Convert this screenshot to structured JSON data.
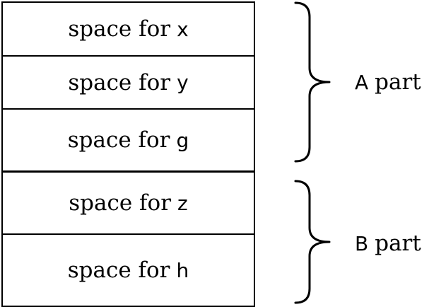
{
  "cells": [
    {
      "prefix": "space for",
      "var": "x"
    },
    {
      "prefix": "space for",
      "var": "y"
    },
    {
      "prefix": "space for",
      "var": "g"
    },
    {
      "prefix": "space for",
      "var": "z"
    },
    {
      "prefix": "space for",
      "var": "h"
    }
  ],
  "groups": [
    {
      "letter": "A",
      "word": "part"
    },
    {
      "letter": "B",
      "word": "part"
    }
  ]
}
